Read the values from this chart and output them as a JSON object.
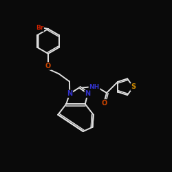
{
  "bg_color": "#0a0a0a",
  "bond_color": "#e0e0e0",
  "bond_width": 1.4,
  "atom_colors": {
    "Br": "#cc2200",
    "O": "#cc4400",
    "N": "#3333cc",
    "S": "#cc8800",
    "H": "#e0e0e0",
    "C": "#e0e0e0"
  },
  "font_size": 7.0
}
